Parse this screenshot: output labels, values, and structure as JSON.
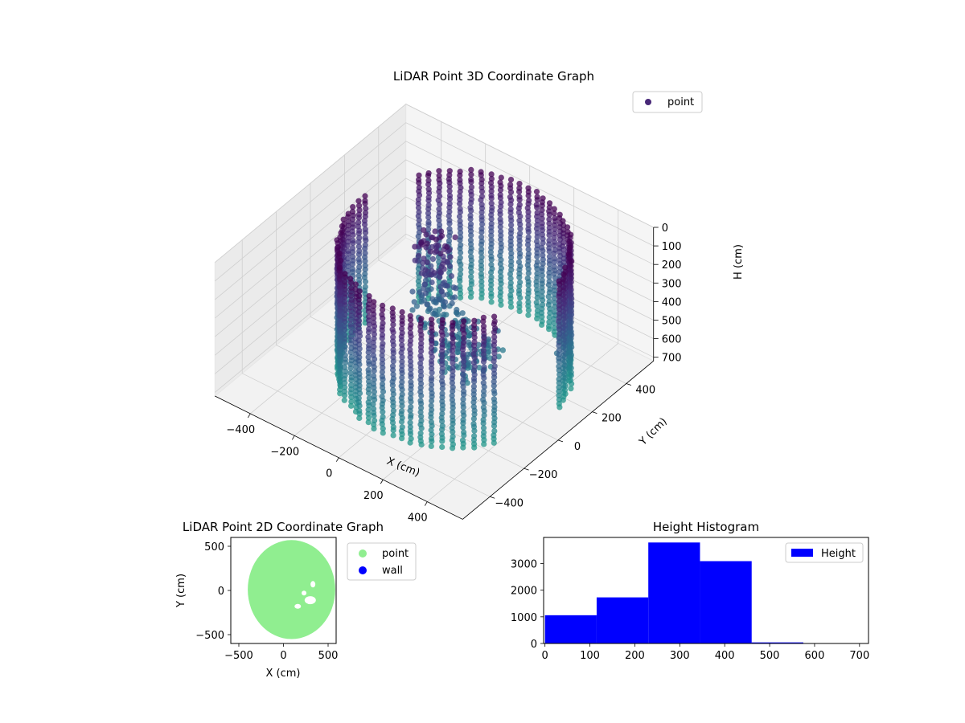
{
  "chart_data": [
    {
      "type": "scatter",
      "projection": "3d",
      "title": "LiDAR Point 3D Coordinate Graph",
      "xlabel": "X (cm)",
      "ylabel": "Y (cm)",
      "zlabel": "H (cm)",
      "x_ticks": [
        "−400",
        "−200",
        "0",
        "200",
        "400"
      ],
      "y_ticks": [
        "400",
        "200",
        "0",
        "−200",
        "−400"
      ],
      "z_ticks": [
        "0",
        "100",
        "200",
        "300",
        "400",
        "500",
        "600",
        "700"
      ],
      "xlim": [
        -560,
        560
      ],
      "ylim": [
        -560,
        560
      ],
      "zlim": [
        0,
        720
      ],
      "z_inverted": true,
      "grid": true,
      "legend": {
        "entries": [
          "point"
        ],
        "placement": "upper-right"
      },
      "colormap": "viridis",
      "series": [
        {
          "name": "point",
          "color": "#482878",
          "description_of_shape": "cylindrical wall of radius ~420 cm spanning heights 0–700 cm plus scattered interior points",
          "wall": {
            "center": [
              60,
              40
            ],
            "radius": 420,
            "h_range": [
              0,
              700
            ],
            "gap_angles_deg": [
              [
                -30,
                10
              ],
              [
                150,
                175
              ]
            ]
          },
          "interior_clusters": [
            {
              "center": [
                -60,
                80
              ],
              "h_range": [
                60,
                520
              ],
              "spread": 70
            },
            {
              "center": [
                120,
                20
              ],
              "h_range": [
                420,
                560
              ],
              "spread": 110
            },
            {
              "center": [
                420,
                180
              ],
              "h_range": [
                470,
                480
              ],
              "spread": 5
            }
          ]
        }
      ]
    },
    {
      "type": "scatter",
      "title": "LiDAR Point 2D Coordinate Graph",
      "xlabel": "X (cm)",
      "ylabel": "Y (cm)",
      "x_ticks": [
        "−500",
        "0",
        "500"
      ],
      "y_ticks": [
        "500",
        "0",
        "−500"
      ],
      "xlim": [
        -590,
        590
      ],
      "ylim": [
        -600,
        600
      ],
      "legend": {
        "entries": [
          "point",
          "wall"
        ],
        "placement": "outside-right"
      },
      "series": [
        {
          "name": "point",
          "color": "#90EE90",
          "shape": "filled disc",
          "center": [
            90,
            10
          ],
          "radius": [
            490,
            560
          ]
        },
        {
          "name": "wall",
          "color": "#0000FF"
        }
      ]
    },
    {
      "type": "bar",
      "title": "Height Histogram",
      "legend": {
        "entries": [
          "Height"
        ],
        "placement": "upper-right"
      },
      "x_ticks": [
        "0",
        "100",
        "200",
        "300",
        "400",
        "500",
        "600",
        "700"
      ],
      "y_ticks": [
        "0",
        "1000",
        "2000",
        "3000"
      ],
      "xlim": [
        -3,
        720
      ],
      "ylim": [
        0,
        3980
      ],
      "bins": [
        {
          "x0": 0,
          "x1": 115,
          "value": 1060
        },
        {
          "x0": 115,
          "x1": 230,
          "value": 1730
        },
        {
          "x0": 230,
          "x1": 345,
          "value": 3790
        },
        {
          "x0": 345,
          "x1": 460,
          "value": 3090
        },
        {
          "x0": 460,
          "x1": 575,
          "value": 40
        },
        {
          "x0": 575,
          "x1": 690,
          "value": 3
        }
      ],
      "series": [
        {
          "name": "Height",
          "color": "#0000FF"
        }
      ]
    }
  ]
}
